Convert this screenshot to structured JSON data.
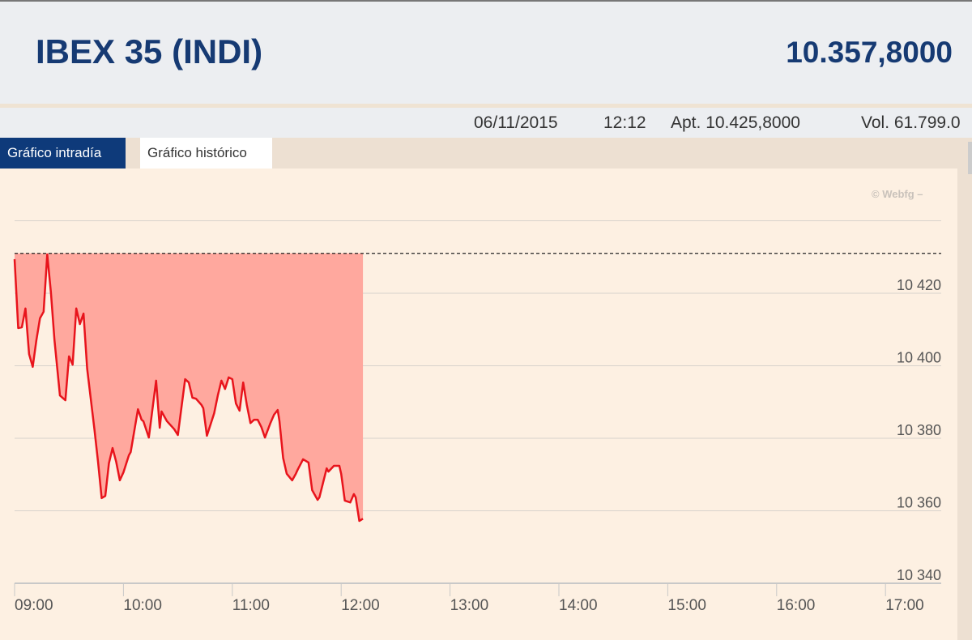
{
  "header": {
    "title": "IBEX 35 (INDI)",
    "price": "10.357,8000"
  },
  "info": {
    "date": "06/11/2015",
    "time": "12:12",
    "open": "Apt. 10.425,8000",
    "volume": "Vol. 61.799.0"
  },
  "tabs": [
    {
      "label": "Gráfico intradía",
      "active": true
    },
    {
      "label": "Gráfico histórico",
      "active": false
    }
  ],
  "credit": "© Webfg –",
  "colors": {
    "line": "#e8141c",
    "fill": "#ffa89e",
    "title": "#163a73",
    "active_tab": "#0e3a7a"
  },
  "chart_data": {
    "type": "area",
    "reference_line": 10431,
    "ylim": [
      10340,
      10440
    ],
    "yticks": [
      10340,
      10360,
      10380,
      10400,
      10420
    ],
    "ytick_labels": [
      "10 340",
      "10 360",
      "10 380",
      "10 400",
      "10 420"
    ],
    "xlim": [
      "09:00",
      "17:30"
    ],
    "xtick_labels": [
      "09:00",
      "10:00",
      "11:00",
      "12:00",
      "13:00",
      "14:00",
      "15:00",
      "16:00",
      "17:00"
    ],
    "grid": true,
    "points": [
      [
        "09:00",
        10429.4
      ],
      [
        "09:02",
        10410.4
      ],
      [
        "09:04",
        10410.6
      ],
      [
        "09:06",
        10415.8
      ],
      [
        "09:08",
        10403.2
      ],
      [
        "09:10",
        10399.7
      ],
      [
        "09:12",
        10407.0
      ],
      [
        "09:14",
        10413.1
      ],
      [
        "09:16",
        10414.9
      ],
      [
        "09:18",
        10430.7
      ],
      [
        "09:20",
        10420.4
      ],
      [
        "09:22",
        10407.0
      ],
      [
        "09:25",
        10391.8
      ],
      [
        "09:28",
        10390.5
      ],
      [
        "09:30",
        10402.6
      ],
      [
        "09:32",
        10400.3
      ],
      [
        "09:34",
        10415.8
      ],
      [
        "09:36",
        10411.5
      ],
      [
        "09:38",
        10414.4
      ],
      [
        "09:40",
        10399.2
      ],
      [
        "09:44",
        10382.5
      ],
      [
        "09:46",
        10373.5
      ],
      [
        "09:48",
        10363.5
      ],
      [
        "09:50",
        10364.1
      ],
      [
        "09:52",
        10373.1
      ],
      [
        "09:54",
        10377.3
      ],
      [
        "09:56",
        10373.5
      ],
      [
        "09:58",
        10368.4
      ],
      [
        "10:00",
        10370.6
      ],
      [
        "10:03",
        10375.3
      ],
      [
        "10:04",
        10376.2
      ],
      [
        "10:08",
        10388.0
      ],
      [
        "10:10",
        10385.1
      ],
      [
        "10:11",
        10384.7
      ],
      [
        "10:14",
        10380.2
      ],
      [
        "10:18",
        10395.9
      ],
      [
        "10:20",
        10382.9
      ],
      [
        "10:21",
        10387.4
      ],
      [
        "10:24",
        10384.7
      ],
      [
        "10:28",
        10382.5
      ],
      [
        "10:30",
        10380.9
      ],
      [
        "10:34",
        10396.3
      ],
      [
        "10:36",
        10395.4
      ],
      [
        "10:38",
        10391.2
      ],
      [
        "10:40",
        10390.9
      ],
      [
        "10:43",
        10389.2
      ],
      [
        "10:44",
        10388.3
      ],
      [
        "10:46",
        10380.7
      ],
      [
        "10:50",
        10386.9
      ],
      [
        "10:52",
        10391.8
      ],
      [
        "10:54",
        10395.9
      ],
      [
        "10:56",
        10393.6
      ],
      [
        "10:58",
        10396.8
      ],
      [
        "11:00",
        10396.3
      ],
      [
        "11:02",
        10389.6
      ],
      [
        "11:04",
        10387.6
      ],
      [
        "11:06",
        10395.4
      ],
      [
        "11:08",
        10389.2
      ],
      [
        "11:10",
        10384.2
      ],
      [
        "11:12",
        10385.1
      ],
      [
        "11:14",
        10385.1
      ],
      [
        "11:16",
        10383.1
      ],
      [
        "11:18",
        10380.2
      ],
      [
        "11:21",
        10384.2
      ],
      [
        "11:23",
        10386.5
      ],
      [
        "11:25",
        10387.8
      ],
      [
        "11:26",
        10384.7
      ],
      [
        "11:28",
        10374.6
      ],
      [
        "11:30",
        10370.2
      ],
      [
        "11:33",
        10368.4
      ],
      [
        "11:35",
        10370.2
      ],
      [
        "11:36",
        10371.3
      ],
      [
        "11:39",
        10374.2
      ],
      [
        "11:42",
        10373.3
      ],
      [
        "11:44",
        10365.7
      ],
      [
        "11:47",
        10363.0
      ],
      [
        "11:48",
        10363.7
      ],
      [
        "11:52",
        10371.7
      ],
      [
        "11:53",
        10370.8
      ],
      [
        "11:56",
        10372.4
      ],
      [
        "11:59",
        10372.4
      ],
      [
        "12:00",
        10370.2
      ],
      [
        "12:02",
        10362.8
      ],
      [
        "12:05",
        10362.3
      ],
      [
        "12:07",
        10364.6
      ],
      [
        "12:08",
        10363.7
      ],
      [
        "12:10",
        10357.2
      ],
      [
        "12:12",
        10357.8
      ]
    ]
  }
}
